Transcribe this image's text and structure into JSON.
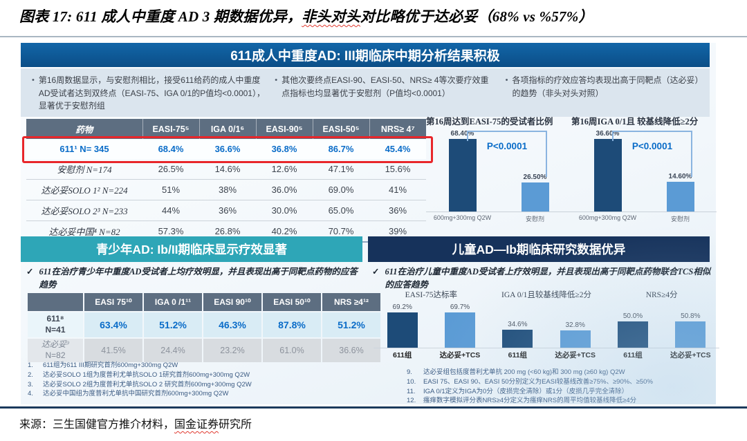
{
  "figure_title": {
    "prefix": "图表 17: 611 成人中重度 AD 3 期数据优异，",
    "wavy": "非头对头",
    "suffix": "对比略优于达必妥（68% vs %57%）"
  },
  "source": {
    "prefix": "来源：三生国健官方推介材料，",
    "wavy": "国金证券",
    "suffix": "研究所"
  },
  "slide": {
    "header": "611成人中重度AD: III期临床中期分析结果积极",
    "top_bullets": [
      "第16周数据显示，与安慰剂相比，接受611给药的成人中重度AD受试者达到双终点（EASI-75、IGA 0/1的P值均<0.0001），显著优于安慰剂组",
      "其他次要终点EASI-90、EASI-50、NRS≥ 4等次要疗效重点指标也均显著优于安慰剂（P值均<0.0001）",
      "各项指标的疗效应答均表现出高于同靶点（达必妥）的趋势（非头对头对照）"
    ],
    "adolescent_header": "青少年AD: Ib/II期临床显示疗效显著",
    "children_header": "儿童AD—Ib期临床研究数据优异",
    "check_mark": "✓",
    "adolescent_bullet": "611在治疗青少年中重度AD受试者上均疗效明显，并且表现出高于同靶点药物的应答趋势",
    "children_bullet": "611在治疗儿童中重度AD受试者上疗效明显，并且表现出高于同靶点药物联合TCS相似的应答趋势",
    "left_footnotes": [
      {
        "num": "1.",
        "text": "611组为611 III期研究首剂600mg+300mg Q2W"
      },
      {
        "num": "2.",
        "text": "达必妥SOLO 1组为度普利尤单抗SOLO 1研究首剂600mg+300mg Q2W"
      },
      {
        "num": "3.",
        "text": "达必妥SOLO 2组为度普利尤单抗SOLO 2 研究首剂600mg+300mg Q2W"
      },
      {
        "num": "4.",
        "text": "达必妥中国组为度普利尤单抗中国研究首剂600mg+300mg Q2W"
      }
    ],
    "right_footnotes": [
      {
        "num": "9.",
        "text": "达必妥组包括度普利尤单抗 200 mg (<60 kg)和 300 mg (≥60 kg) Q2W"
      },
      {
        "num": "10.",
        "text": "EASI 75、EASI 90、EASI 50分别定义为EASI较基线改善≥75%、≥90%、≥50%"
      },
      {
        "num": "11.",
        "text": "IGA 0/1定义为IGA为0分（皮损完全清除）或1分（皮损几乎完全清除）"
      },
      {
        "num": "12.",
        "text": "瘙痒数字模拟评分表NRS≥4分定义为瘙痒NRS的周平均值较基线降低≥4分"
      }
    ]
  },
  "adult_table": {
    "headers": [
      "药物",
      "EASI-75⁵",
      "IGA 0/1⁶",
      "EASI-90⁵",
      "EASI-50⁵",
      "NRS≥ 4⁷"
    ],
    "rows": [
      {
        "label": "611¹  N= 345",
        "cells": [
          "68.4%",
          "36.6%",
          "36.8%",
          "86.7%",
          "45.4%"
        ]
      },
      {
        "label": "安慰剂  N=174",
        "cells": [
          "26.5%",
          "14.6%",
          "12.6%",
          "47.1%",
          "15.6%"
        ]
      },
      {
        "label": "达必妥SOLO 1² N=224",
        "cells": [
          "51%",
          "38%",
          "36.0%",
          "69.0%",
          "41%"
        ]
      },
      {
        "label": "达必妥SOLO 2³ N=233",
        "cells": [
          "44%",
          "36%",
          "30.0%",
          "65.0%",
          "36%"
        ]
      },
      {
        "label": "达必妥中国⁴ N=82",
        "cells": [
          "57.3%",
          "26.8%",
          "40.2%",
          "70.7%",
          "39%"
        ]
      }
    ]
  },
  "adolescent_table": {
    "headers": [
      "",
      "EASI 75¹⁰",
      "IGA 0 /1¹¹",
      "EASI 90¹⁰",
      "EASI 50¹⁰",
      "NRS ≥4¹²"
    ],
    "rows": [
      {
        "label": "611⁸",
        "n": "N=41",
        "cells": [
          "63.4%",
          "51.2%",
          "46.3%",
          "87.8%",
          "51.2%"
        ]
      },
      {
        "label": "达必妥⁹",
        "n": "N=82",
        "cells": [
          "41.5%",
          "24.4%",
          "23.2%",
          "61.0%",
          "36.6%"
        ]
      }
    ]
  },
  "chart_data": [
    {
      "type": "bar",
      "title": "第16周达到EASI-75的受试者比例",
      "categories": [
        "600mg+300mg Q2W",
        "安慰剂"
      ],
      "values": [
        68.4,
        26.5
      ],
      "labels": [
        "68.40%",
        "26.50%"
      ],
      "annotation": "P<0.0001",
      "ylim": [
        0,
        75
      ],
      "colors": [
        "#1d4b78",
        "#5b9bd5"
      ],
      "grid": false,
      "legend": "none"
    },
    {
      "type": "bar",
      "title": "第16周IGA 0/1且 较基线降低≥2分",
      "categories": [
        "600mg+300mg Q2W",
        "安慰剂"
      ],
      "values": [
        36.6,
        14.6
      ],
      "labels": [
        "36.60%",
        "14.60%"
      ],
      "annotation": "P<0.0001",
      "ylim": [
        0,
        40
      ],
      "colors": [
        "#1d4b78",
        "#5b9bd5"
      ],
      "grid": false,
      "legend": "none"
    },
    {
      "type": "bar",
      "title": "EASI-75达标率",
      "categories": [
        "611组",
        "达必妥+TCS"
      ],
      "values": [
        69.2,
        69.7
      ],
      "labels": [
        "69.2%",
        "69.7%"
      ],
      "ylim": [
        0,
        85
      ],
      "colors": [
        "#1d4b78",
        "#5b9bd5"
      ],
      "grid": false,
      "legend": "none"
    },
    {
      "type": "bar",
      "title": "IGA 0/1且较基线降低≥2分",
      "categories": [
        "611组",
        "达必妥+TCS"
      ],
      "values": [
        34.6,
        32.8
      ],
      "labels": [
        "34.6%",
        "32.8%"
      ],
      "ylim": [
        0,
        85
      ],
      "colors": [
        "#1d4b78",
        "#5b9bd5"
      ],
      "grid": false,
      "legend": "none"
    },
    {
      "type": "bar",
      "title": "NRS≥4分",
      "categories": [
        "611组",
        "达必妥+TCS"
      ],
      "values": [
        50.0,
        50.8
      ],
      "labels": [
        "50.0%",
        "50.8%"
      ],
      "ylim": [
        0,
        85
      ],
      "colors": [
        "#1d4b78",
        "#5b9bd5"
      ],
      "grid": false,
      "legend": "none"
    }
  ],
  "colors": {
    "header_blue": "#0f5e9e",
    "teal_band": "#2ea6b7",
    "navy_band": "#16325b",
    "table_header_slate": "#5d6e81",
    "bar_dark": "#1d4b78",
    "bar_light": "#5b9bd5",
    "value_blue": "#0a6cc8",
    "highlight_red": "#e8262a",
    "bottom_rule_navy": "#1b3a5c"
  }
}
